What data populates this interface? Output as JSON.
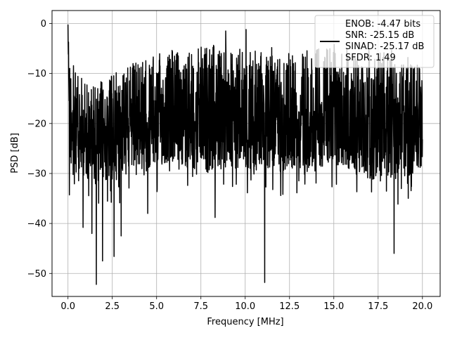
{
  "chart_data": {
    "type": "line",
    "xlabel": "Frequency [MHz]",
    "ylabel": "PSD [dB]",
    "xlim": [
      -0.9,
      21.0
    ],
    "ylim": [
      -54.6,
      2.6
    ],
    "xticks": [
      0.0,
      2.5,
      5.0,
      7.5,
      10.0,
      12.5,
      15.0,
      17.5,
      20.0
    ],
    "xtick_labels": [
      "0.0",
      "2.5",
      "5.0",
      "7.5",
      "10.0",
      "12.5",
      "15.0",
      "17.5",
      "20.0"
    ],
    "yticks": [
      0,
      -10,
      -20,
      -30,
      -40,
      -50
    ],
    "ytick_labels": [
      "0",
      "−10",
      "−20",
      "−30",
      "−40",
      "−50"
    ],
    "grid": true,
    "legend_position": "top-right",
    "legend_entries": [
      "ENOB: -4.47 bits",
      "SNR: -25.15 dB",
      "SINAD: -25.17 dB",
      "SFDR: 1.49"
    ],
    "series": [
      {
        "color": "#000000",
        "x_start": 0.0,
        "x_end": 20.0,
        "point_count": 2000,
        "envelope": {
          "x": [
            0.0,
            0.1,
            0.3,
            0.5,
            1.0,
            2.0,
            3.0,
            4.0,
            5.0,
            6.0,
            7.0,
            8.0,
            9.0,
            10.0,
            11.0,
            12.0,
            13.0,
            14.0,
            15.0,
            16.0,
            17.0,
            18.0,
            19.0,
            20.0
          ],
          "upper": [
            0.0,
            -5.0,
            -8.0,
            -10.0,
            -11.0,
            -11.0,
            -8.0,
            -7.0,
            -6.0,
            -5.0,
            -5.0,
            -4.0,
            -5.0,
            -5.0,
            -5.0,
            -4.0,
            -5.0,
            -5.0,
            -4.0,
            -5.0,
            -5.0,
            -4.0,
            -6.0,
            -9.0
          ],
          "lower": [
            -3.0,
            -28.0,
            -29.0,
            -30.0,
            -31.0,
            -32.0,
            -31.0,
            -30.0,
            -29.0,
            -28.0,
            -29.0,
            -30.0,
            -29.0,
            -29.0,
            -29.0,
            -30.0,
            -29.0,
            -29.0,
            -28.0,
            -30.0,
            -31.0,
            -32.0,
            -31.0,
            -29.0
          ]
        },
        "notable_points": [
          {
            "x": 0.0,
            "y": -0.2
          },
          {
            "x": 0.08,
            "y": -34.3
          },
          {
            "x": 0.85,
            "y": -40.8
          },
          {
            "x": 1.35,
            "y": -42.0
          },
          {
            "x": 1.6,
            "y": -52.2
          },
          {
            "x": 1.95,
            "y": -47.5
          },
          {
            "x": 2.6,
            "y": -46.6
          },
          {
            "x": 3.0,
            "y": -42.5
          },
          {
            "x": 4.5,
            "y": -38.0
          },
          {
            "x": 8.3,
            "y": -38.8
          },
          {
            "x": 11.1,
            "y": -51.8
          },
          {
            "x": 18.4,
            "y": -46.0
          },
          {
            "x": 8.9,
            "y": -1.5
          },
          {
            "x": 10.05,
            "y": -1.2
          }
        ]
      }
    ]
  }
}
